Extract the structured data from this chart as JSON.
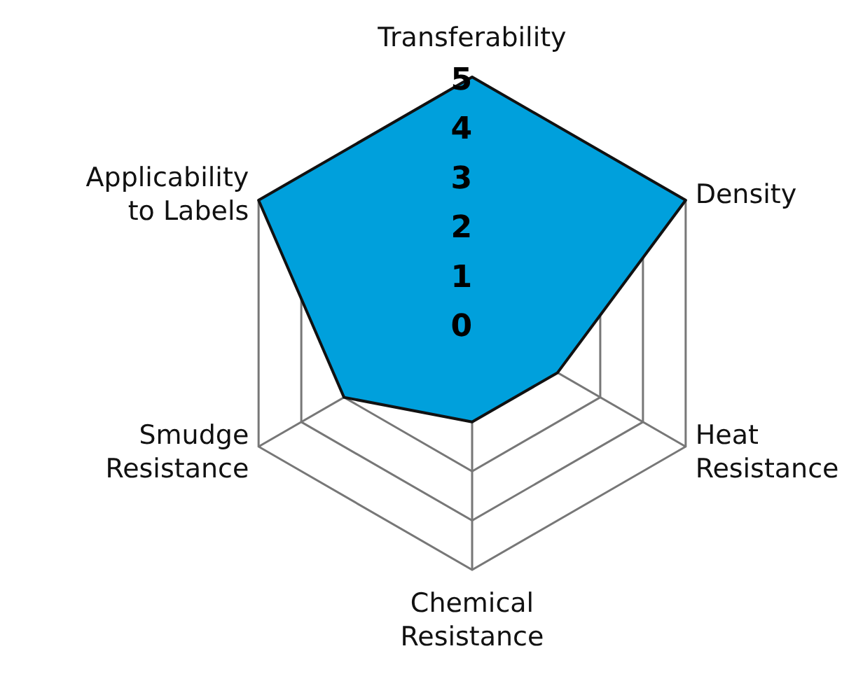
{
  "chart_data": {
    "type": "radar",
    "categories": [
      "Transferability",
      "Density",
      "Heat Resistance",
      "Chemical Resistance",
      "Smudge Resistance",
      "Applicability to Labels"
    ],
    "series": [
      {
        "color": "#00a0dc",
        "values": [
          5,
          5,
          2,
          2,
          3,
          5
        ]
      }
    ],
    "ylim": [
      0,
      5
    ],
    "yticks": [
      0,
      1,
      2,
      3,
      4,
      5
    ],
    "grid": true
  }
}
